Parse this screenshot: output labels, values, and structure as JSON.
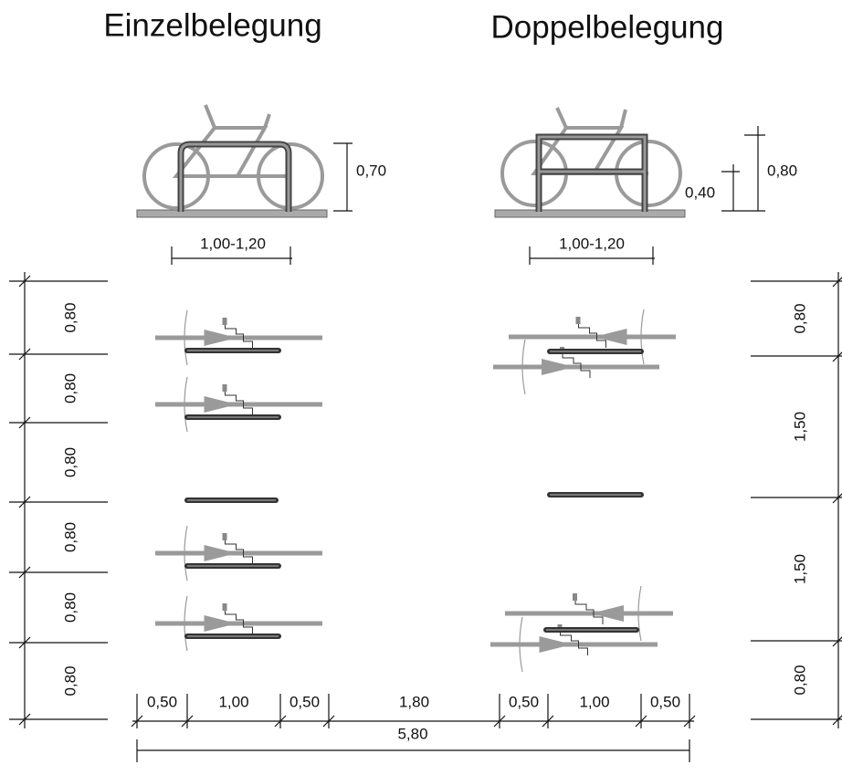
{
  "titles": {
    "left": "Einzelbelegung",
    "right": "Doppelbelegung"
  },
  "elevation": {
    "left": {
      "height": "0,70",
      "width": "1,00-1,20"
    },
    "right": {
      "height_total": "0,80",
      "height_bar": "0,40",
      "width": "1,00-1,20"
    }
  },
  "left_dims": [
    "0,80",
    "0,80",
    "0,80",
    "0,80",
    "0,80",
    "0,80"
  ],
  "right_dims": [
    "0,80",
    "1,50",
    "1,50",
    "0,80"
  ],
  "bottom_dims": [
    "0,50",
    "1,00",
    "0,50",
    "1,80",
    "0,50",
    "1,00",
    "0,50"
  ],
  "total": "5,80"
}
